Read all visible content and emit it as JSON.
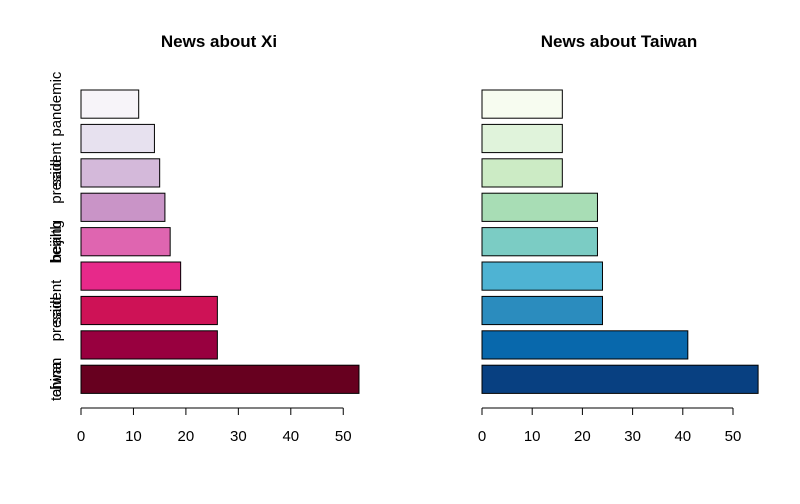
{
  "chart_data": [
    {
      "type": "bar",
      "orientation": "horizontal",
      "title": "News about Xi",
      "categories": [
        "china",
        "",
        "president",
        "",
        "beijing",
        "",
        "said",
        "",
        "pandemic"
      ],
      "values": [
        53,
        26,
        26,
        19,
        17,
        16,
        15,
        14,
        11
      ],
      "colors": [
        "#67001F",
        "#98003F",
        "#CE1256",
        "#E7298A",
        "#DF65B0",
        "#C994C7",
        "#D4B9DA",
        "#E7E1EF",
        "#F7F4F9"
      ],
      "xticks": [
        "0",
        "10",
        "20",
        "30",
        "40",
        "50"
      ],
      "xlim": [
        0,
        53
      ]
    },
    {
      "type": "bar",
      "orientation": "horizontal",
      "title": "News about Taiwan",
      "categories": [
        "taiwan",
        "",
        "said",
        "",
        "health",
        "",
        "president",
        "",
        ""
      ],
      "values": [
        55,
        41,
        24,
        24,
        23,
        23,
        16,
        16,
        16
      ],
      "colors": [
        "#084081",
        "#0868AC",
        "#2B8CBE",
        "#4EB3D3",
        "#7BCCC4",
        "#A8DDB5",
        "#CCEBC5",
        "#E0F3DB",
        "#F7FCF0"
      ],
      "xticks": [
        "0",
        "10",
        "20",
        "30",
        "40",
        "50"
      ],
      "xlim": [
        0,
        55
      ]
    }
  ]
}
